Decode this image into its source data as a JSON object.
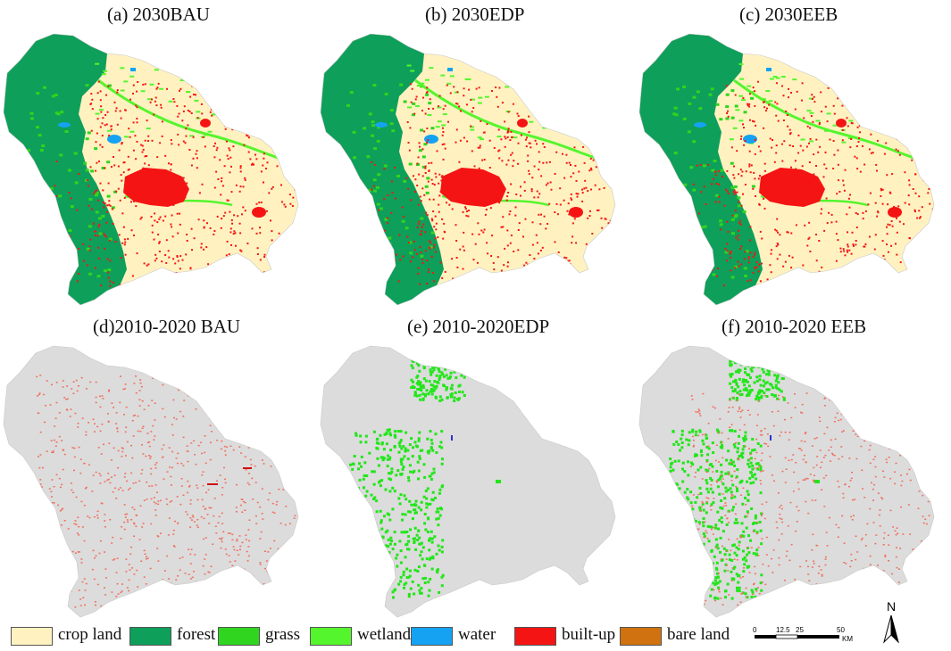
{
  "panels": [
    {
      "id": "a",
      "title": "(a) 2030BAU",
      "type": "landuse",
      "variant": "bau"
    },
    {
      "id": "b",
      "title": "(b) 2030EDP",
      "type": "landuse",
      "variant": "edp"
    },
    {
      "id": "c",
      "title": "(c) 2030EEB",
      "type": "landuse",
      "variant": "eeb"
    },
    {
      "id": "d",
      "title": "(d)2010-2020 BAU",
      "type": "change",
      "variant": "bau"
    },
    {
      "id": "e",
      "title": "(e) 2010-2020EDP",
      "type": "change",
      "variant": "edp"
    },
    {
      "id": "f",
      "title": "(f) 2010-2020 EEB",
      "type": "change",
      "variant": "eeb"
    }
  ],
  "legend": [
    {
      "label": "crop land",
      "color": "#FFF2C0"
    },
    {
      "label": "forest",
      "color": "#0E9F5A"
    },
    {
      "label": "grass",
      "color": "#2FD51F"
    },
    {
      "label": "wetland",
      "color": "#55F52E"
    },
    {
      "label": "water",
      "color": "#15A2F2"
    },
    {
      "label": "built-up",
      "color": "#F51414"
    },
    {
      "label": "bare land",
      "color": "#D0720F"
    }
  ],
  "scale_bar": {
    "ticks": [
      "0",
      "12.5",
      "25",
      "50"
    ],
    "unit": "KM"
  },
  "north_arrow": {
    "label": "N"
  },
  "colors": {
    "background_region": "#DCDCDC",
    "change_builtup": "#F07060",
    "change_green": "#22E61A",
    "change_water": "#3030D0"
  }
}
